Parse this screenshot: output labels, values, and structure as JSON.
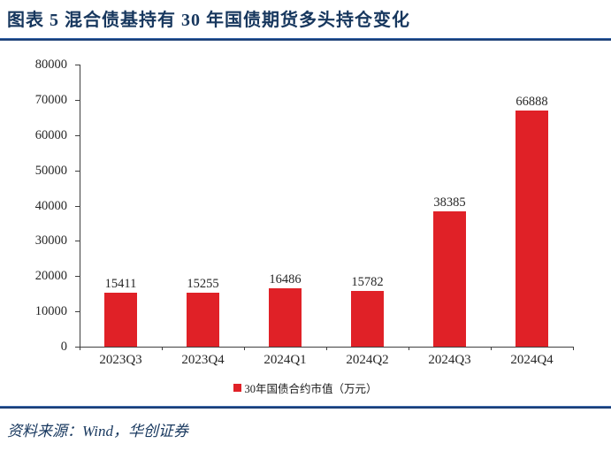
{
  "page": {
    "title": "图表 5  混合债基持有 30 年国债期货多头持仓变化",
    "source": "资料来源：Wind，华创证券"
  },
  "colors": {
    "title_navy": "#17375E",
    "rule_blue": "#1B3F77",
    "bar_red": "#E02127",
    "axis_gray": "#3F3F3F",
    "label_dark": "#262626"
  },
  "chart_data": {
    "type": "bar",
    "title": "",
    "categories": [
      "2023Q3",
      "2023Q4",
      "2024Q1",
      "2024Q2",
      "2024Q3",
      "2024Q4"
    ],
    "values": [
      15411,
      15255,
      16486,
      15782,
      38385,
      66888
    ],
    "legend": "30年国债合约市值（万元）",
    "legend_position": "bottom",
    "xlabel": "",
    "ylabel": "",
    "ylim": [
      0,
      80000
    ],
    "ytick_step": 10000,
    "grid": false,
    "data_labels": true,
    "bar_color": "#E02127"
  }
}
